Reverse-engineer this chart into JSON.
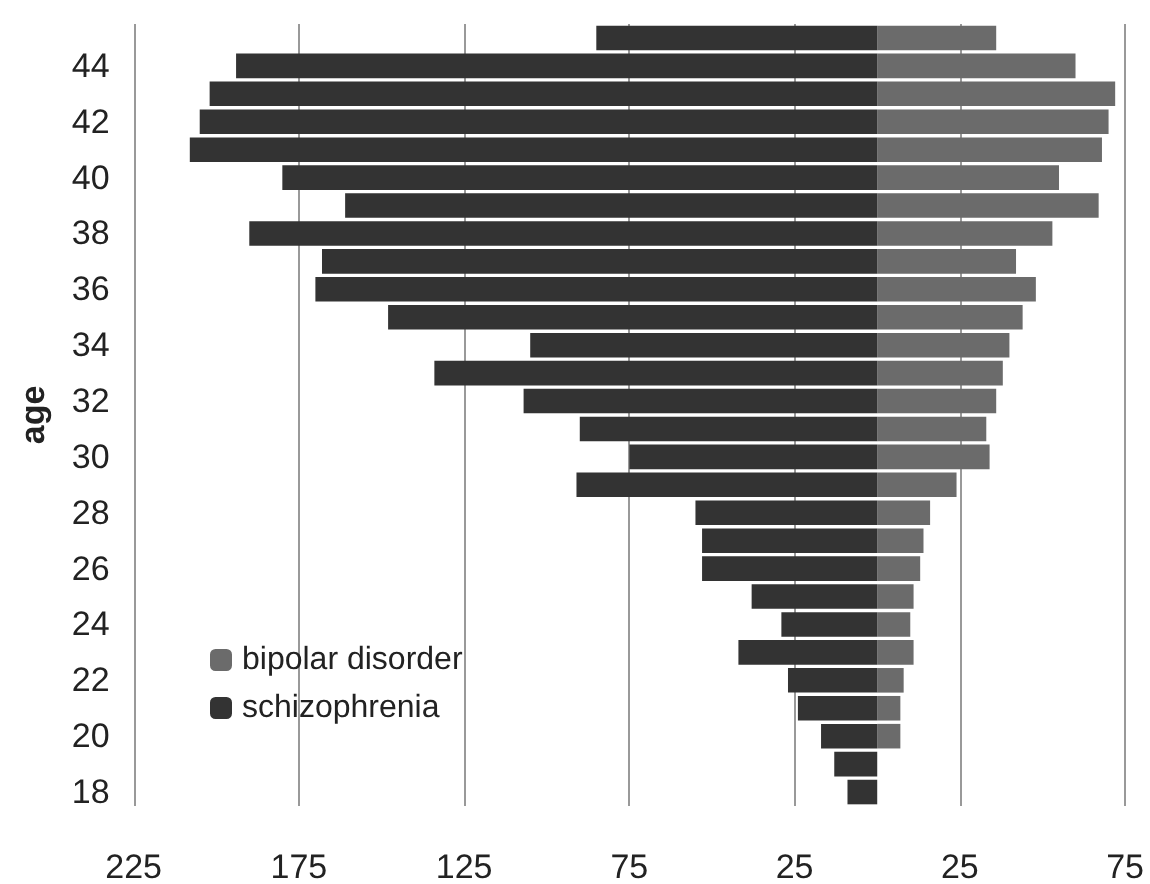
{
  "chart_data": {
    "type": "bar",
    "orientation": "horizontal",
    "stacked": true,
    "ylabel": "age",
    "categories": [
      null,
      "44",
      null,
      "42",
      null,
      "40",
      null,
      "38",
      null,
      "36",
      null,
      "34",
      null,
      "32",
      null,
      "30",
      null,
      "28",
      null,
      "26",
      null,
      "24",
      null,
      "22",
      null,
      "20",
      null,
      "18"
    ],
    "series": [
      {
        "name": "bipolar disorder",
        "color": "#6b6b6b",
        "values": [
          36,
          60,
          72,
          70,
          68,
          55,
          67,
          53,
          42,
          48,
          44,
          40,
          38,
          36,
          33,
          34,
          24,
          16,
          14,
          13,
          11,
          10,
          11,
          8,
          7,
          7,
          0,
          0
        ]
      },
      {
        "name": "schizophrenia",
        "color": "#333333",
        "values": [
          -85,
          -194,
          -202,
          -205,
          -208,
          -180,
          -161,
          -190,
          -168,
          -170,
          -148,
          -105,
          -134,
          -107,
          -90,
          -75,
          -91,
          -55,
          -53,
          -53,
          -38,
          -29,
          -42,
          -27,
          -24,
          -17,
          -13,
          -9
        ]
      }
    ],
    "xlim": [
      -225,
      75
    ],
    "xticks": [
      {
        "value": -225,
        "label": "225"
      },
      {
        "value": -175,
        "label": "175"
      },
      {
        "value": -125,
        "label": "125"
      },
      {
        "value": -75,
        "label": "75"
      },
      {
        "value": -25,
        "label": "25"
      },
      25,
      75
    ],
    "grid": "x",
    "legend": "bottom left"
  }
}
